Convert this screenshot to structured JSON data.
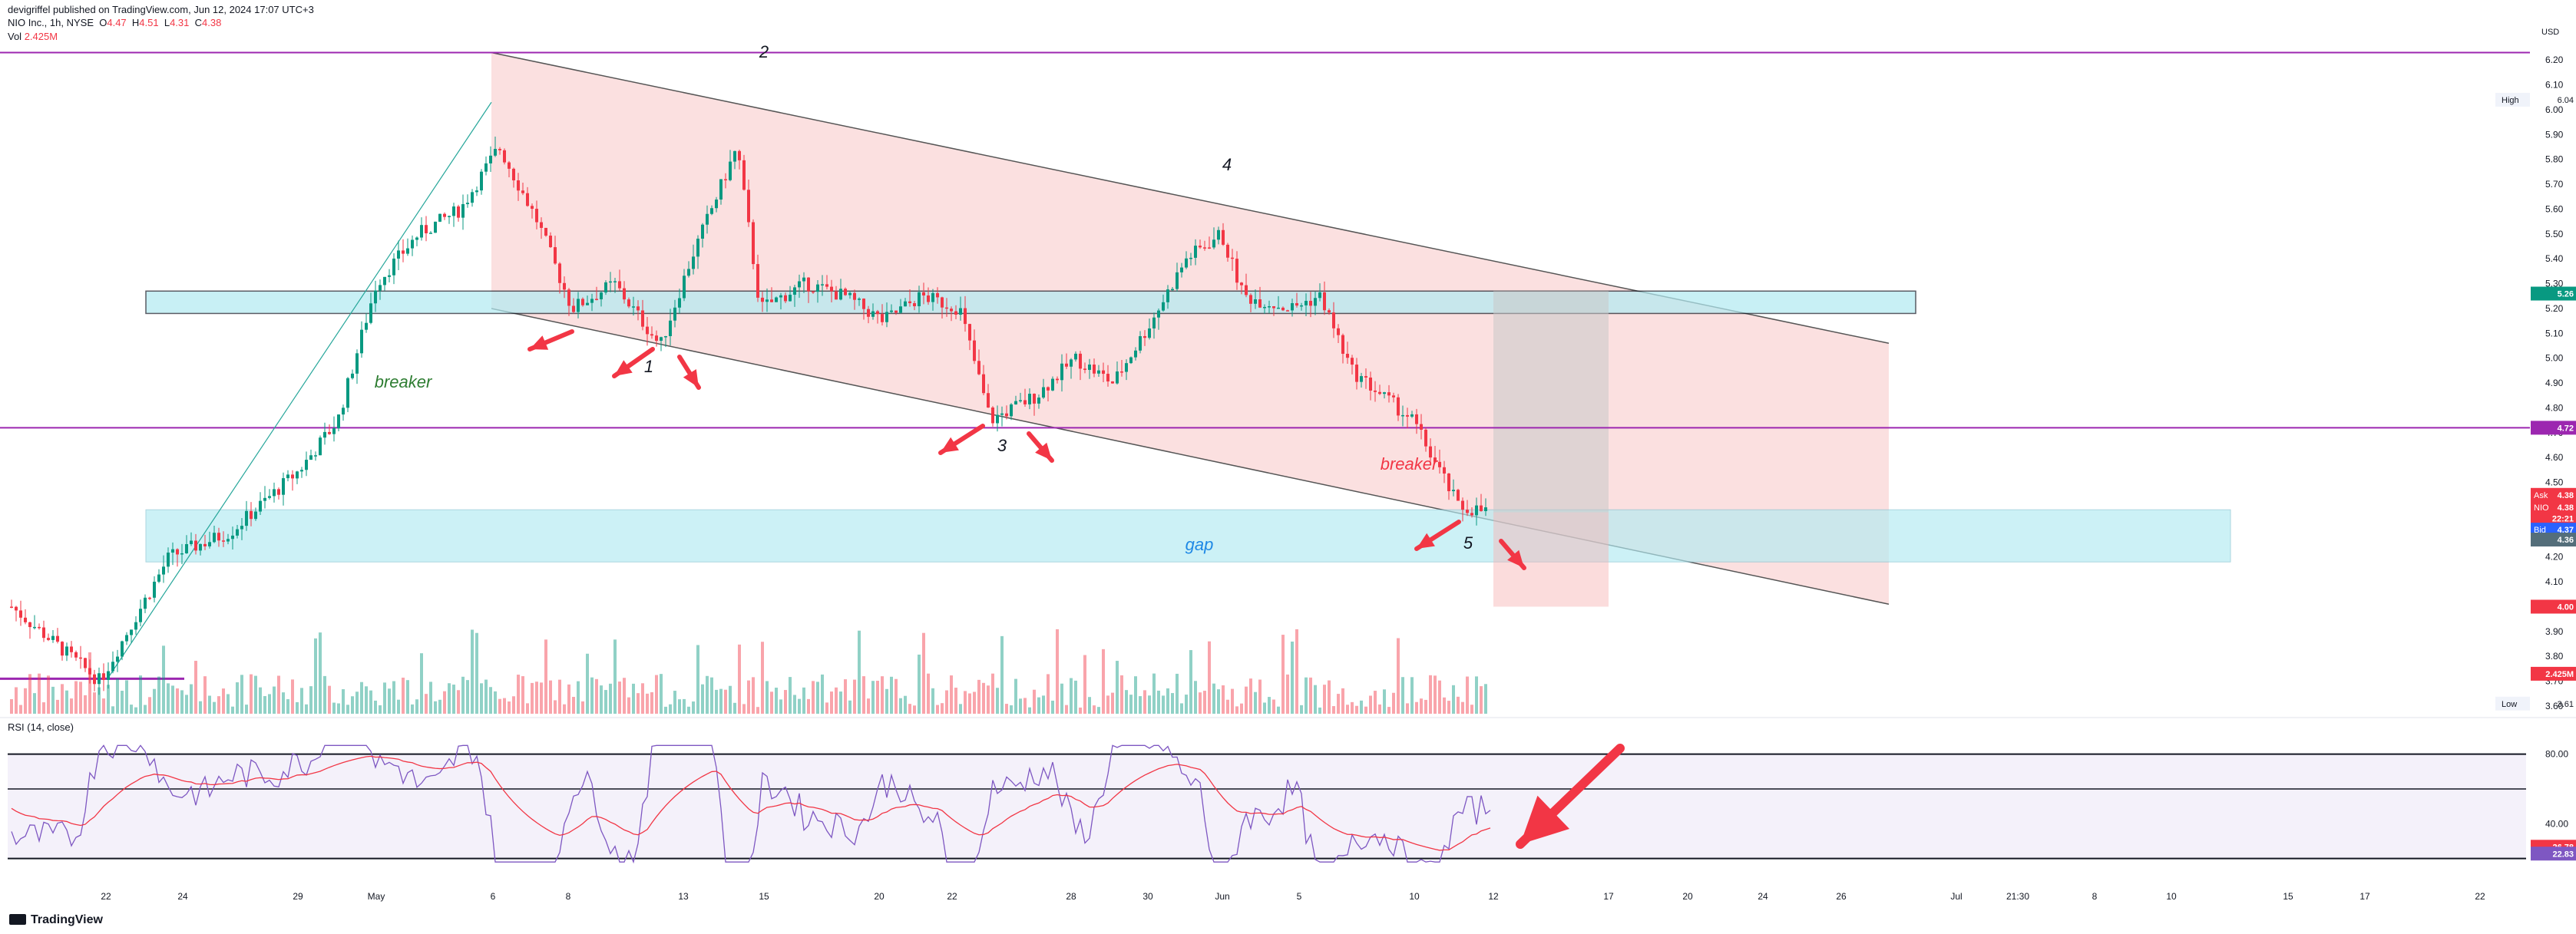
{
  "header": {
    "publisher": "devigriffel published on TradingView.com, Jun 12, 2024 17:07 UTC+3",
    "symbol": "NIO Inc., 1h, NYSE",
    "open_label": "O",
    "open": "4.47",
    "high_label": "H",
    "high": "4.51",
    "low_label": "L",
    "low": "4.31",
    "close_label": "C",
    "close": "4.38",
    "volume_label": "Vol",
    "volume": "2.425M"
  },
  "watermark": "TradingView",
  "colors": {
    "up": "#089981",
    "down": "#f23645",
    "purple": "#9c27b0",
    "channel": "#f7c6c6",
    "zone": "#b2ebf2",
    "rsi": "#7e57c2",
    "rsi_ma": "#f23645",
    "bg_rsi": "#ede7f6"
  },
  "chart_data": [
    {
      "type": "candlestick",
      "title": "NIO Inc., 1h, NYSE",
      "currency": "USD",
      "ylim": [
        3.6,
        6.25
      ],
      "y_ticks": [
        "6.20",
        "6.10",
        "6.00",
        "5.90",
        "5.80",
        "5.70",
        "5.60",
        "5.50",
        "5.40",
        "5.30",
        "5.20",
        "5.10",
        "5.00",
        "4.90",
        "4.80",
        "4.70",
        "4.60",
        "4.50",
        "4.40",
        "4.30",
        "4.20",
        "4.10",
        "4.00",
        "3.90",
        "3.80",
        "3.70",
        "3.60"
      ],
      "x_ticks": [
        "22",
        "24",
        "29",
        "May",
        "6",
        "8",
        "13",
        "15",
        "20",
        "22",
        "28",
        "30",
        "Jun",
        "5",
        "10",
        "12",
        "17",
        "20",
        "24",
        "26",
        "Jul",
        "21:30",
        "8",
        "10",
        "15",
        "17",
        "22"
      ],
      "price_path": [
        [
          "Apr 19",
          4.0
        ],
        [
          "Apr 22",
          3.7
        ],
        [
          "Apr 24",
          4.2
        ],
        [
          "Apr 26",
          4.3
        ],
        [
          "Apr 29",
          4.55
        ],
        [
          "Apr 30",
          4.75
        ],
        [
          "May 1",
          5.3
        ],
        [
          "May 2",
          5.5
        ],
        [
          "May 3",
          5.6
        ],
        [
          "May 6",
          5.85
        ],
        [
          "May 7",
          5.55
        ],
        [
          "May 8",
          5.2
        ],
        [
          "May 9",
          5.3
        ],
        [
          "May 10",
          5.05
        ],
        [
          "May 13",
          5.4
        ],
        [
          "May 14",
          5.85
        ],
        [
          "May 15",
          5.2
        ],
        [
          "May 16",
          5.3
        ],
        [
          "May 17",
          5.25
        ],
        [
          "May 20",
          5.15
        ],
        [
          "May 21",
          5.25
        ],
        [
          "May 22",
          5.2
        ],
        [
          "May 23",
          4.75
        ],
        [
          "May 24",
          4.85
        ],
        [
          "May 27",
          5.0
        ],
        [
          "May 28",
          4.9
        ],
        [
          "May 29",
          5.15
        ],
        [
          "May 30",
          5.4
        ],
        [
          "May 31",
          5.5
        ],
        [
          "Jun 3",
          5.25
        ],
        [
          "Jun 4",
          5.2
        ],
        [
          "Jun 5",
          5.25
        ],
        [
          "Jun 7",
          4.95
        ],
        [
          "Jun 10",
          4.75
        ],
        [
          "Jun 11",
          4.4
        ],
        [
          "Jun 12",
          4.38
        ]
      ],
      "high_marker": "6.04",
      "low_marker": "3.61",
      "volume_last": "2.425M",
      "horizontal_levels": [
        {
          "price": 4.72,
          "label": "4.72",
          "color": "#9c27b0"
        },
        {
          "price": 6.23,
          "color": "#9c27b0"
        }
      ],
      "price_labels": {
        "zone_top": "5.26",
        "ask_label": "Ask",
        "ask": "4.38",
        "last_label": "NIO",
        "last": "4.38",
        "countdown": "22:21",
        "bid_label": "Bid",
        "bid": "4.37",
        "bid2": "4.36",
        "target": "4.00",
        "high_label": "High",
        "low_label": "Low"
      },
      "annotations": [
        "1",
        "2",
        "3",
        "4",
        "5",
        "breaker",
        "breaker",
        "gap"
      ],
      "zones": [
        {
          "name": "upper-zone",
          "from": 5.18,
          "to": 5.27
        },
        {
          "name": "gap-zone",
          "from": 4.18,
          "to": 4.39
        }
      ],
      "channel": {
        "upper_start": 6.23,
        "upper_end": 5.06,
        "lower_start": 5.2,
        "lower_end": 4.01
      }
    },
    {
      "type": "line",
      "title": "RSI (14, close)",
      "values": [
        "22.83",
        "26.78"
      ],
      "series": [
        {
          "name": "RSI"
        },
        {
          "name": "RSI MA"
        }
      ],
      "ylim": [
        15,
        90
      ],
      "y_ticks": [
        "80.00",
        "40.00"
      ],
      "levels": [
        80,
        60,
        40,
        20
      ]
    }
  ]
}
